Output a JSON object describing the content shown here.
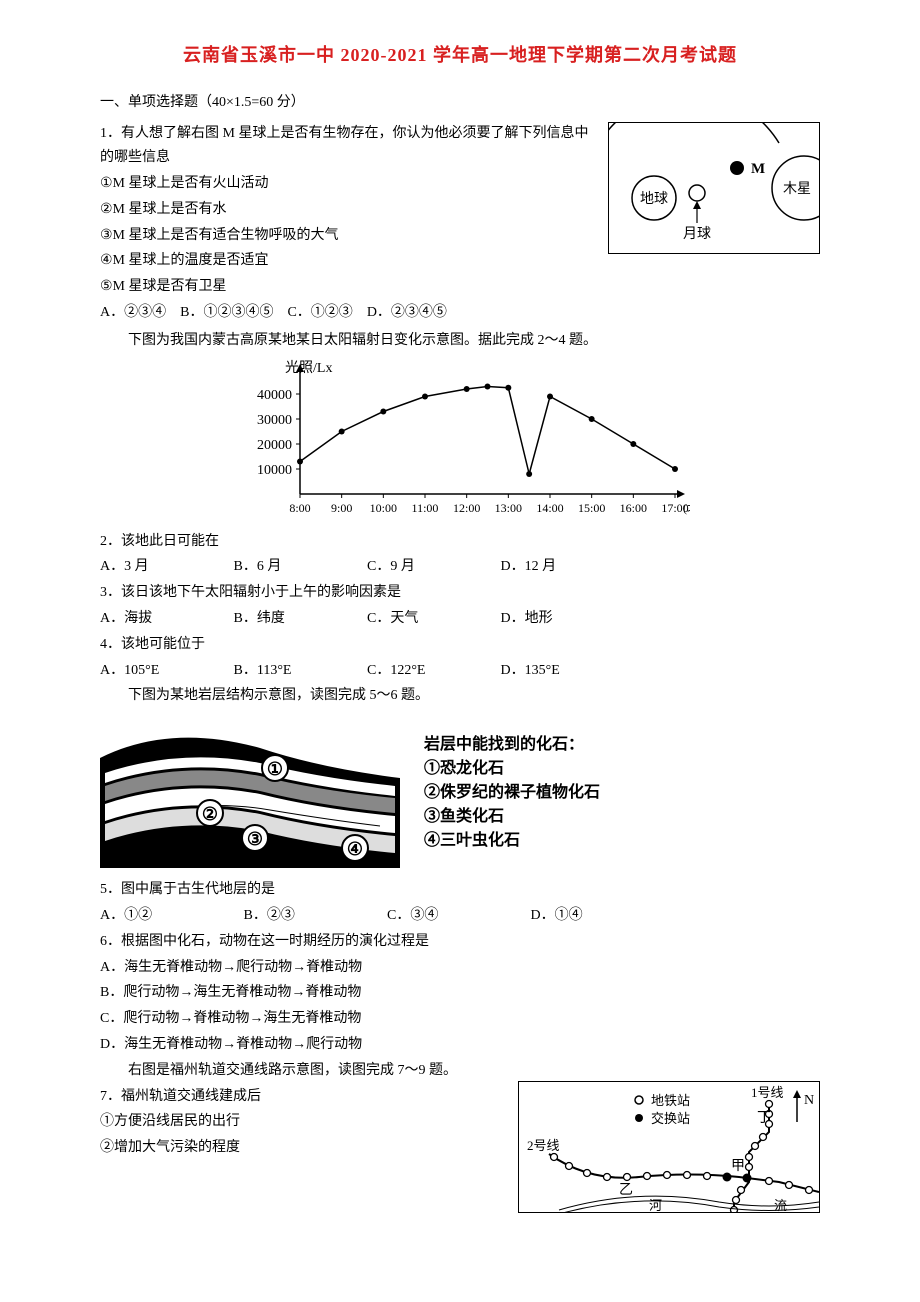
{
  "title": "云南省玉溪市一中 2020-2021 学年高一地理下学期第二次月考试题",
  "section1": "一、单项选择题（40×1.5=60 分）",
  "q1": {
    "stem": "1．有人想了解右图 M 星球上是否有生物存在，你认为他必须要了解下列信息中的哪些信息",
    "s1": "①M 星球上是否有火山活动",
    "s2": "②M 星球上是否有水",
    "s3": "③M 星球上是否有适合生物呼吸的大气",
    "s4": "④M 星球上的温度是否适宜",
    "s5": "⑤M 星球是否有卫星",
    "a": "A．②③④",
    "b": "B．①②③④⑤",
    "c": "C．①②③",
    "d": "D．②③④⑤"
  },
  "fig1": {
    "earth": "地球",
    "moon": "月球",
    "m": "M",
    "jupiter": "木星"
  },
  "intro2": "下图为我国内蒙古高原某地某日太阳辐射日变化示意图。据此完成 2～4 题。",
  "chart": {
    "type": "line",
    "ylabel": "光照/Lx",
    "xlabel_tail": "(北京时间)",
    "xticks": [
      "8:00",
      "9:00",
      "10:00",
      "11:00",
      "12:00",
      "13:00",
      "14:00",
      "15:00",
      "16:00",
      "17:00"
    ],
    "yticks": [
      10000,
      20000,
      30000,
      40000
    ],
    "ylim": [
      0,
      48000
    ],
    "points_x": [
      8,
      9,
      10,
      11,
      12,
      12.5,
      13,
      13.5,
      14,
      15,
      16,
      17
    ],
    "points_y": [
      13000,
      25000,
      33000,
      39000,
      42000,
      43000,
      42500,
      8000,
      39000,
      30000,
      20000,
      10000
    ],
    "line_color": "#000000",
    "background_color": "#ffffff",
    "label_fontsize": 14
  },
  "q2": {
    "stem": "2．该地此日可能在",
    "a": "A．3 月",
    "b": "B．6 月",
    "c": "C．9 月",
    "d": "D．12 月"
  },
  "q3": {
    "stem": "3．该日该地下午太阳辐射小于上午的影响因素是",
    "a": "A．海拔",
    "b": "B．纬度",
    "c": "C．天气",
    "d": "D．地形"
  },
  "q4": {
    "stem": "4．该地可能位于",
    "a": "A．105°E",
    "b": "B．113°E",
    "c": "C．122°E",
    "d": "D．135°E"
  },
  "intro5": "下图为某地岩层结构示意图，读图完成 5～6 题。",
  "strata": {
    "legend_title": "岩层中能找到的化石：",
    "l1": "①恐龙化石",
    "l2": "②侏罗纪的裸子植物化石",
    "l3": "③鱼类化石",
    "l4": "④三叶虫化石"
  },
  "q5": {
    "stem": "5．图中属于古生代地层的是",
    "a": "A．①②",
    "b": "B．②③",
    "c": "C．③④",
    "d": "D．①④"
  },
  "q6": {
    "stem": "6．根据图中化石，动物在这一时期经历的演化过程是",
    "a": "A．海生无脊椎动物→爬行动物→脊椎动物",
    "b": "B．爬行动物→海生无脊椎动物→脊椎动物",
    "c": "C．爬行动物→脊椎动物→海生无脊椎动物",
    "d": "D．海生无脊椎动物→脊椎动物→爬行动物"
  },
  "intro7": "右图是福州轨道交通线路示意图，读图完成 7～9 题。",
  "q7": {
    "stem": "7．福州轨道交通线建成后",
    "s1": "①方便沿线居民的出行",
    "s2": "②增加大气污染的程度"
  },
  "map": {
    "line1": "1号线",
    "line2": "2号线",
    "station": "地铁站",
    "interchange": "交换站",
    "n": "N",
    "t": "丁",
    "yi": "乙",
    "jia": "甲",
    "river1": "河",
    "river2": "流"
  }
}
